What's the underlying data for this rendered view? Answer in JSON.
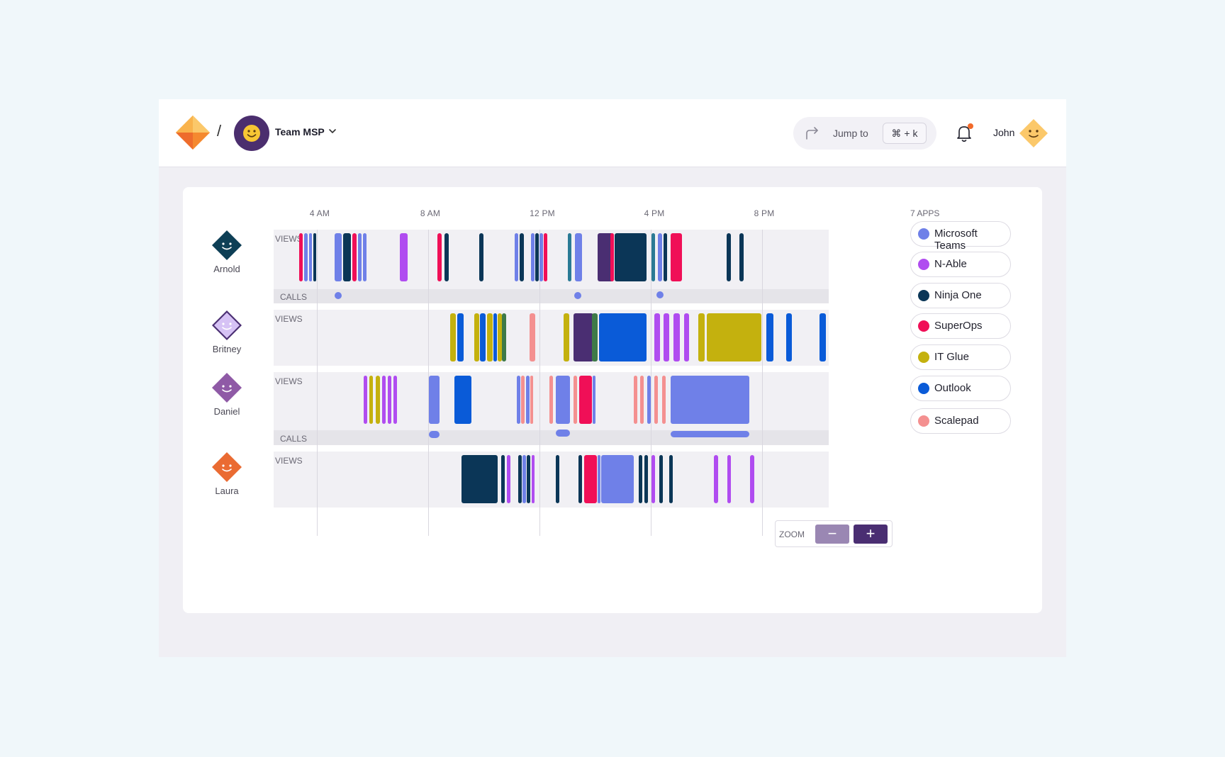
{
  "header": {
    "breadcrumb_separator": "/",
    "team_name": "Team MSP",
    "jump_to_label": "Jump to",
    "shortcut": "⌘ + k",
    "user_name": "John"
  },
  "timeline": {
    "time_labels": [
      "4 AM",
      "8 AM",
      "12 PM",
      "4 PM",
      "8 PM"
    ],
    "apps_count_label": "7 APPS",
    "views_label": "VIEWS",
    "calls_label": "CALLS"
  },
  "people": [
    {
      "name": "Arnold",
      "avatar_color": "#0e3f56"
    },
    {
      "name": "Britney",
      "avatar_color": "#c9b3ef"
    },
    {
      "name": "Daniel",
      "avatar_color": "#8f5aa6"
    },
    {
      "name": "Laura",
      "avatar_color": "#ea6b32"
    }
  ],
  "apps": [
    {
      "name": "Microsoft Teams",
      "color": "#6f80e8"
    },
    {
      "name": "N-Able",
      "color": "#b04cf0"
    },
    {
      "name": "Ninja One",
      "color": "#0b3657"
    },
    {
      "name": "SuperOps",
      "color": "#f00f57"
    },
    {
      "name": "IT Glue",
      "color": "#c4b10e"
    },
    {
      "name": "Outlook",
      "color": "#0a5bd8"
    },
    {
      "name": "Scalepad",
      "color": "#f49090"
    }
  ],
  "zoom": {
    "label": "ZOOM",
    "out_label": "−",
    "in_label": "+"
  }
}
